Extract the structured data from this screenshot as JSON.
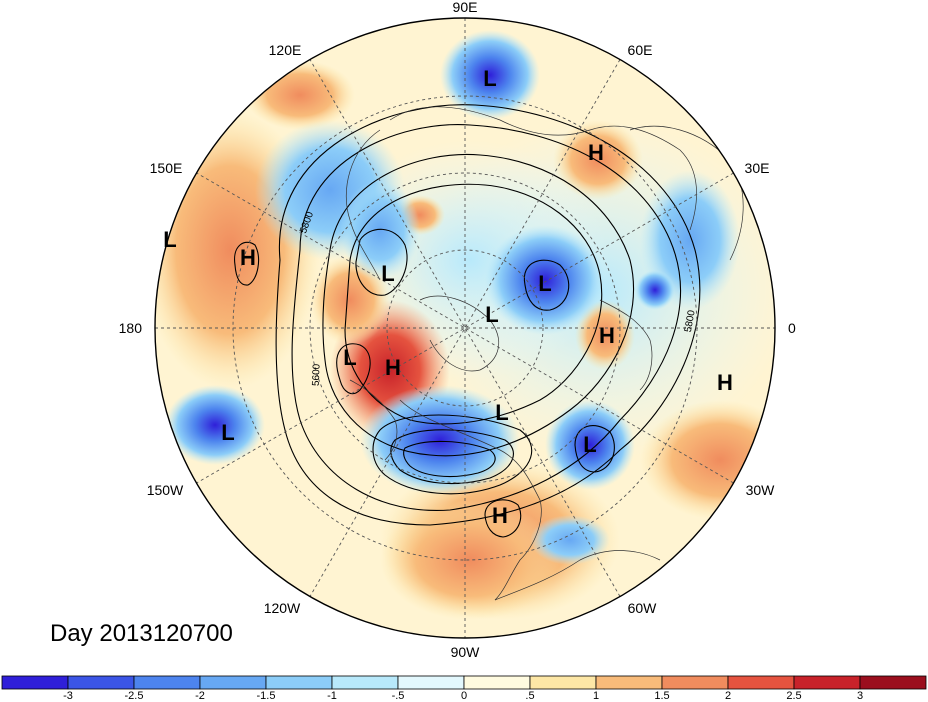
{
  "title": "Day 2013120700",
  "projection": "north-polar-stereographic",
  "longitude_labels": [
    "90E",
    "60E",
    "30E",
    "0",
    "30W",
    "60W",
    "90W",
    "120W",
    "150W",
    "180",
    "150E",
    "120E"
  ],
  "contour_labels": [
    "5800",
    "5600",
    "5800"
  ],
  "pressure_systems": [
    {
      "type": "L",
      "lon": "around 95E"
    },
    {
      "type": "H",
      "lon": "around 50E"
    },
    {
      "type": "L",
      "lon": "around 150E"
    },
    {
      "type": "H",
      "lon": "around 150E"
    },
    {
      "type": "L",
      "lon": "around 170E"
    },
    {
      "type": "L",
      "lon": "around 80E"
    },
    {
      "type": "L",
      "lon": "around 90E"
    },
    {
      "type": "H",
      "lon": "around 15E"
    },
    {
      "type": "L",
      "lon": "around 175W"
    },
    {
      "type": "H",
      "lon": "around 170W"
    },
    {
      "type": "L",
      "lon": "around 100W"
    },
    {
      "type": "L",
      "lon": "around 40W"
    },
    {
      "type": "H",
      "lon": "around 10W"
    },
    {
      "type": "L",
      "lon": "around 160W"
    },
    {
      "type": "H",
      "lon": "around 85W"
    }
  ],
  "colorbar": {
    "ticks": [
      "-3",
      "-2.5",
      "-2",
      "-1.5",
      "-1",
      "-.5",
      "0",
      ".5",
      "1",
      "1.5",
      "2",
      "2.5",
      "3"
    ],
    "colors": [
      "#2f1fd9",
      "#3b55e6",
      "#4d84ee",
      "#67a8f3",
      "#8ccdf8",
      "#b8e9fb",
      "#e3f8fd",
      "#fffbe0",
      "#fde7a6",
      "#f8bb7a",
      "#f08c5e",
      "#e5533f",
      "#c8222a",
      "#9b0f1e"
    ]
  }
}
